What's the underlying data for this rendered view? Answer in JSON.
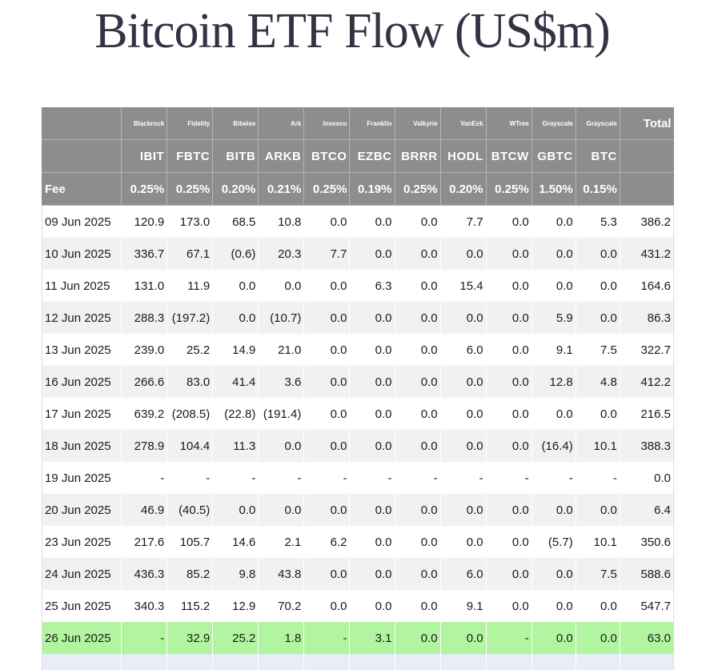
{
  "title": "Bitcoin ETF Flow (US$m)",
  "colors": {
    "header_bg": "#8d8d8d",
    "negative": "#e0342c",
    "highlight_row": "#b2f5a0",
    "alt_row": "#f1f1f1"
  },
  "header": {
    "issuers": [
      "Blackrock",
      "Fidelity",
      "Bitwise",
      "Ark",
      "Invesco",
      "Franklin",
      "Valkyrie",
      "VanEck",
      "WTree",
      "Grayscale",
      "Grayscale"
    ],
    "total_label": "Total",
    "tickers": [
      "IBIT",
      "FBTC",
      "BITB",
      "ARKB",
      "BTCO",
      "EZBC",
      "BRRR",
      "HODL",
      "BTCW",
      "GBTC",
      "BTC"
    ],
    "fee_label": "Fee",
    "fees": [
      "0.25%",
      "0.25%",
      "0.20%",
      "0.21%",
      "0.25%",
      "0.19%",
      "0.25%",
      "0.20%",
      "0.25%",
      "1.50%",
      "0.15%"
    ]
  },
  "rows": [
    {
      "date": "09 Jun 2025",
      "values": [
        "120.9",
        "173.0",
        "68.5",
        "10.8",
        "0.0",
        "0.0",
        "0.0",
        "7.7",
        "0.0",
        "0.0",
        "5.3"
      ],
      "total": "386.2"
    },
    {
      "date": "10 Jun 2025",
      "values": [
        "336.7",
        "67.1",
        "(0.6)",
        "20.3",
        "7.7",
        "0.0",
        "0.0",
        "0.0",
        "0.0",
        "0.0",
        "0.0"
      ],
      "total": "431.2"
    },
    {
      "date": "11 Jun 2025",
      "values": [
        "131.0",
        "11.9",
        "0.0",
        "0.0",
        "0.0",
        "6.3",
        "0.0",
        "15.4",
        "0.0",
        "0.0",
        "0.0"
      ],
      "total": "164.6"
    },
    {
      "date": "12 Jun 2025",
      "values": [
        "288.3",
        "(197.2)",
        "0.0",
        "(10.7)",
        "0.0",
        "0.0",
        "0.0",
        "0.0",
        "0.0",
        "5.9",
        "0.0"
      ],
      "total": "86.3"
    },
    {
      "date": "13 Jun 2025",
      "values": [
        "239.0",
        "25.2",
        "14.9",
        "21.0",
        "0.0",
        "0.0",
        "0.0",
        "6.0",
        "0.0",
        "9.1",
        "7.5"
      ],
      "total": "322.7"
    },
    {
      "date": "16 Jun 2025",
      "values": [
        "266.6",
        "83.0",
        "41.4",
        "3.6",
        "0.0",
        "0.0",
        "0.0",
        "0.0",
        "0.0",
        "12.8",
        "4.8"
      ],
      "total": "412.2"
    },
    {
      "date": "17 Jun 2025",
      "values": [
        "639.2",
        "(208.5)",
        "(22.8)",
        "(191.4)",
        "0.0",
        "0.0",
        "0.0",
        "0.0",
        "0.0",
        "0.0",
        "0.0"
      ],
      "total": "216.5"
    },
    {
      "date": "18 Jun 2025",
      "values": [
        "278.9",
        "104.4",
        "11.3",
        "0.0",
        "0.0",
        "0.0",
        "0.0",
        "0.0",
        "0.0",
        "(16.4)",
        "10.1"
      ],
      "total": "388.3"
    },
    {
      "date": "19 Jun 2025",
      "values": [
        "-",
        "-",
        "-",
        "-",
        "-",
        "-",
        "-",
        "-",
        "-",
        "-",
        "-"
      ],
      "total": "0.0"
    },
    {
      "date": "20 Jun 2025",
      "values": [
        "46.9",
        "(40.5)",
        "0.0",
        "0.0",
        "0.0",
        "0.0",
        "0.0",
        "0.0",
        "0.0",
        "0.0",
        "0.0"
      ],
      "total": "6.4"
    },
    {
      "date": "23 Jun 2025",
      "values": [
        "217.6",
        "105.7",
        "14.6",
        "2.1",
        "6.2",
        "0.0",
        "0.0",
        "0.0",
        "0.0",
        "(5.7)",
        "10.1"
      ],
      "total": "350.6"
    },
    {
      "date": "24 Jun 2025",
      "values": [
        "436.3",
        "85.2",
        "9.8",
        "43.8",
        "0.0",
        "0.0",
        "0.0",
        "6.0",
        "0.0",
        "0.0",
        "7.5"
      ],
      "total": "588.6"
    },
    {
      "date": "25 Jun 2025",
      "values": [
        "340.3",
        "115.2",
        "12.9",
        "70.2",
        "0.0",
        "0.0",
        "0.0",
        "9.1",
        "0.0",
        "0.0",
        "0.0"
      ],
      "total": "547.7"
    },
    {
      "date": "26 Jun 2025",
      "values": [
        "-",
        "32.9",
        "25.2",
        "1.8",
        "-",
        "3.1",
        "0.0",
        "0.0",
        "-",
        "0.0",
        "0.0"
      ],
      "total": "63.0"
    }
  ]
}
